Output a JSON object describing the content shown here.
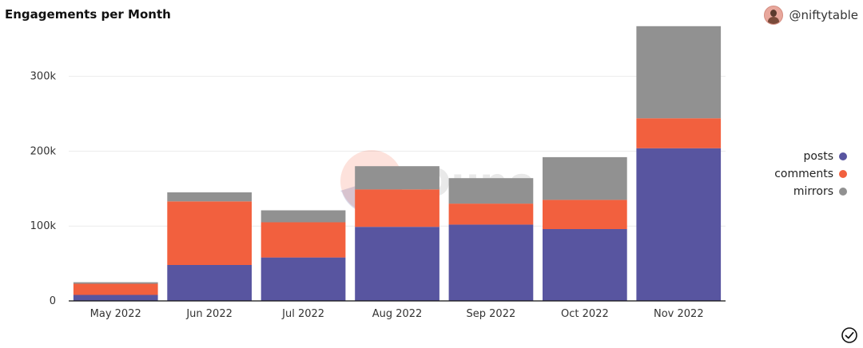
{
  "header": {
    "title": "Engagements per Month",
    "author": "@niftytable"
  },
  "watermark": "Dune",
  "colors": {
    "posts": "#5855a0",
    "comments": "#f2603e",
    "mirrors": "#919191"
  },
  "chart_data": {
    "type": "bar",
    "stacked": true,
    "title": "Engagements per Month",
    "categories": [
      "May 2022",
      "Jun 2022",
      "Jul 2022",
      "Aug 2022",
      "Sep 2022",
      "Oct 2022",
      "Nov 2022"
    ],
    "series": [
      {
        "name": "posts",
        "values": [
          8000,
          48000,
          58000,
          99000,
          102000,
          96000,
          204000
        ]
      },
      {
        "name": "comments",
        "values": [
          15000,
          85000,
          47000,
          50000,
          28000,
          39000,
          40000
        ]
      },
      {
        "name": "mirrors",
        "values": [
          2000,
          12000,
          16000,
          31000,
          34000,
          57000,
          123000
        ]
      }
    ],
    "y_ticks": [
      "0",
      "100k",
      "200k",
      "300k"
    ],
    "y_tick_values": [
      0,
      100000,
      200000,
      300000
    ],
    "ylim": [
      0,
      370000
    ],
    "grid": true,
    "legend_position": "right"
  }
}
